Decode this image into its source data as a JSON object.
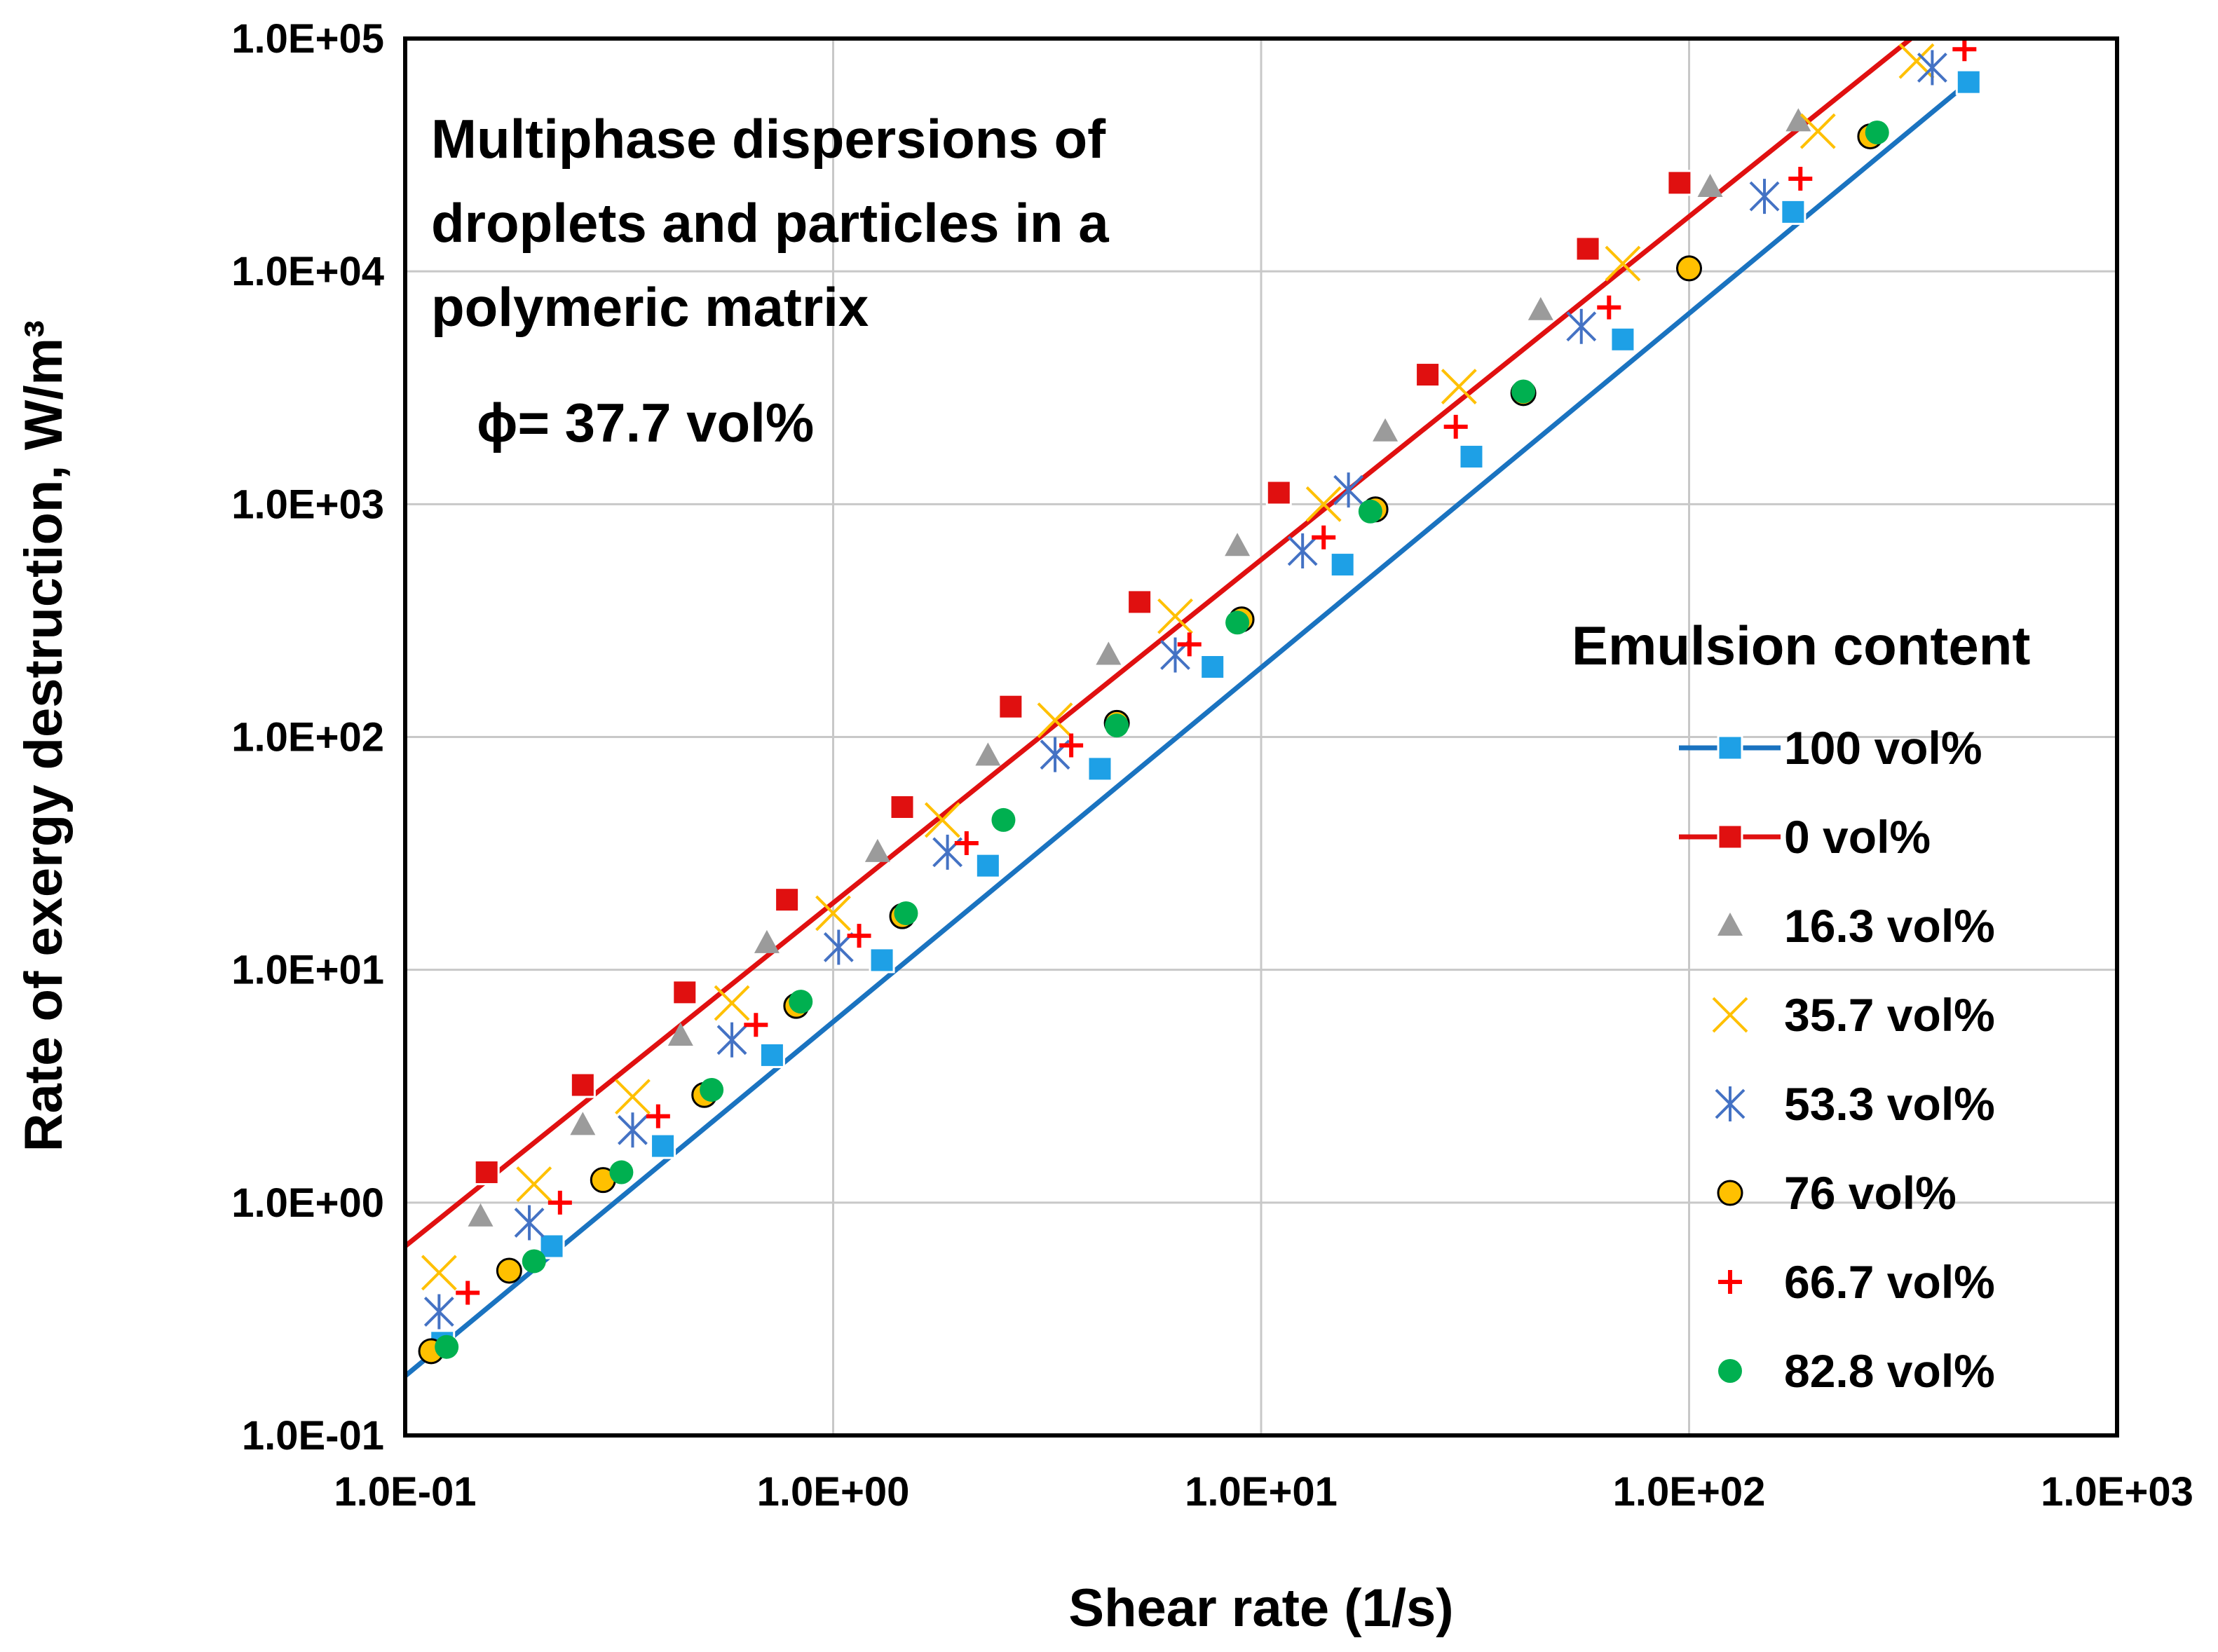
{
  "chart_data": {
    "type": "scatter",
    "title": "",
    "xlabel": "Shear rate (1/s)",
    "ylabel": "Rate of exergy destruction, W/m³",
    "xscale": "log",
    "yscale": "log",
    "xlim": [
      0.1,
      1000
    ],
    "ylim": [
      0.1,
      100000
    ],
    "grid": true,
    "x_tick_labels": [
      "1.0E-01",
      "1.0E+00",
      "1.0E+01",
      "1.0E+02",
      "1.0E+03"
    ],
    "y_tick_labels": [
      "1.0E-01",
      "1.0E+00",
      "1.0E+01",
      "1.0E+02",
      "1.0E+03",
      "1.0E+04",
      "1.0E+05"
    ],
    "annotations": [
      "Multiphase dispersions of",
      "droplets and particles in a",
      "polymeric matrix",
      "ϕ= 37.7 vol%"
    ],
    "legend_title": "Emulsion content",
    "legend_position": "right",
    "series": [
      {
        "name": "100 vol%",
        "marker": "square",
        "line": true,
        "color": "#1ea0e6",
        "line_color": "#1a73c0",
        "fit_line": {
          "x": [
            0.1,
            450
          ],
          "y": [
            0.18,
            65000
          ]
        },
        "x": [
          0.122,
          0.22,
          0.4,
          0.72,
          1.3,
          2.3,
          4.2,
          7.7,
          15.5,
          31,
          70,
          175,
          450
        ],
        "y": [
          0.25,
          0.65,
          1.75,
          4.3,
          11,
          28,
          73,
          200,
          550,
          1600,
          5100,
          18000,
          65000
        ]
      },
      {
        "name": "0 vol%",
        "marker": "square",
        "line": true,
        "color": "#e01010",
        "line_color": "#e01010",
        "fit_line": {
          "x": [
            0.1,
            330
          ],
          "y": [
            0.65,
            100000
          ]
        },
        "x": [
          0.155,
          0.26,
          0.45,
          0.78,
          1.45,
          2.6,
          5.2,
          11,
          24.5,
          58,
          95
        ],
        "y": [
          1.35,
          3.2,
          8,
          20,
          50,
          135,
          380,
          1120,
          3600,
          12500,
          24000
        ]
      },
      {
        "name": "16.3 vol%",
        "marker": "triangle",
        "line": false,
        "color": "#9b9b9b",
        "x": [
          0.15,
          0.26,
          0.44,
          0.7,
          1.27,
          2.3,
          4.4,
          8.8,
          19.5,
          45,
          112,
          180
        ],
        "y": [
          0.87,
          2.15,
          5.2,
          13,
          32,
          83,
          225,
          660,
          2050,
          6800,
          23000,
          44000
        ]
      },
      {
        "name": "35.7 vol%",
        "marker": "x",
        "line": false,
        "color": "#ffc000",
        "x": [
          0.12,
          0.2,
          0.34,
          0.58,
          1.0,
          1.8,
          3.3,
          6.3,
          14,
          29,
          70,
          200,
          340
        ],
        "y": [
          0.5,
          1.2,
          2.85,
          7.2,
          17.5,
          44,
          118,
          330,
          1000,
          3200,
          10800,
          40000,
          80000
        ]
      },
      {
        "name": "53.3 vol%",
        "marker": "asterisk",
        "line": false,
        "color": "#4472c4",
        "x": [
          0.12,
          0.195,
          0.34,
          0.58,
          1.03,
          1.85,
          3.3,
          6.3,
          12.5,
          16,
          56,
          150,
          370
        ],
        "y": [
          0.34,
          0.82,
          2.05,
          5.0,
          12.5,
          32,
          84,
          225,
          630,
          1150,
          5800,
          21000,
          75000
        ]
      },
      {
        "name": "76 vol%",
        "marker": "circle",
        "line": false,
        "color": "#ffc000",
        "x": [
          0.115,
          0.175,
          0.29,
          0.5,
          0.82,
          1.45,
          4.6,
          9.0,
          18.5,
          41,
          100,
          265
        ],
        "y": [
          0.23,
          0.51,
          1.25,
          2.9,
          7.0,
          17,
          115,
          320,
          950,
          3000,
          10300,
          38000
        ]
      },
      {
        "name": "66.7 vol%",
        "marker": "plus",
        "line": false,
        "color": "#ff0000",
        "x": [
          0.14,
          0.23,
          0.39,
          0.66,
          1.15,
          2.05,
          3.6,
          6.8,
          14,
          28.5,
          65,
          182,
          440
        ],
        "y": [
          0.41,
          1.0,
          2.35,
          5.8,
          14,
          35,
          92,
          250,
          720,
          2150,
          7000,
          25000,
          90000
        ]
      },
      {
        "name": "82.8 vol%",
        "marker": "circle",
        "line": false,
        "color": "#00b050",
        "x": [
          0.125,
          0.2,
          0.32,
          0.52,
          0.84,
          1.48,
          2.5,
          4.6,
          8.8,
          18,
          41,
          275
        ],
        "y": [
          0.24,
          0.56,
          1.35,
          3.05,
          7.3,
          17.5,
          44,
          112,
          310,
          930,
          3050,
          39500
        ]
      }
    ]
  }
}
